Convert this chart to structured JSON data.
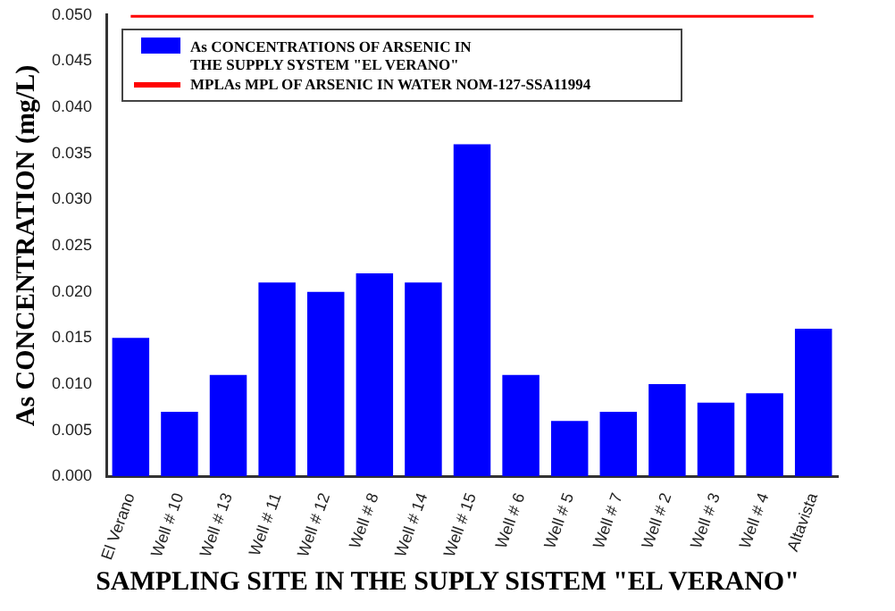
{
  "chart_data": {
    "type": "bar",
    "xlabel": "SAMPLING SITE IN THE SUPLY SISTEM \"EL VERANO\"",
    "ylabel": "As CONCENTRATION (mg/L)",
    "categories": [
      "El Verano",
      "Well # 10",
      "Well # 13",
      "Well # 11",
      "Well # 12",
      "Well # 8",
      "Well # 14",
      "Well # 15",
      "Well # 6",
      "Well # 5",
      "Well # 7",
      "Well # 2",
      "Well # 3",
      "Well # 4",
      "Altavista"
    ],
    "series": [
      {
        "name": "As CONCENTRATIONS OF ARSENIC IN THE SUPPLY SYSTEM \"EL VERANO\"",
        "color": "#0000ff",
        "values": [
          0.015,
          0.007,
          0.011,
          0.021,
          0.02,
          0.022,
          0.021,
          0.036,
          0.011,
          0.006,
          0.007,
          0.01,
          0.008,
          0.009,
          0.016
        ]
      },
      {
        "name": "MPLAs MPL OF ARSENIC IN WATER NOM-127-SSA11994",
        "type": "line",
        "color": "#ff0000",
        "values": [
          0.05,
          0.05,
          0.05,
          0.05,
          0.05,
          0.05,
          0.05,
          0.05,
          0.05,
          0.05,
          0.05,
          0.05,
          0.05,
          0.05,
          0.05
        ]
      }
    ],
    "ylim": [
      0,
      0.05
    ],
    "yticks": [
      {
        "value": 0,
        "label": "0.000"
      },
      {
        "value": 0.005,
        "label": "0.005"
      },
      {
        "value": 0.01,
        "label": "0.010"
      },
      {
        "value": 0.015,
        "label": "0.015"
      },
      {
        "value": 0.02,
        "label": "0.020"
      },
      {
        "value": 0.025,
        "label": "0.025"
      },
      {
        "value": 0.03,
        "label": "0.030"
      },
      {
        "value": 0.035,
        "label": "0.035"
      },
      {
        "value": 0.04,
        "label": "0.040"
      },
      {
        "value": 0.045,
        "label": "0.045"
      },
      {
        "value": 0.05,
        "label": "0.050"
      }
    ],
    "grid": false,
    "legend": "top left",
    "marker": "none"
  }
}
